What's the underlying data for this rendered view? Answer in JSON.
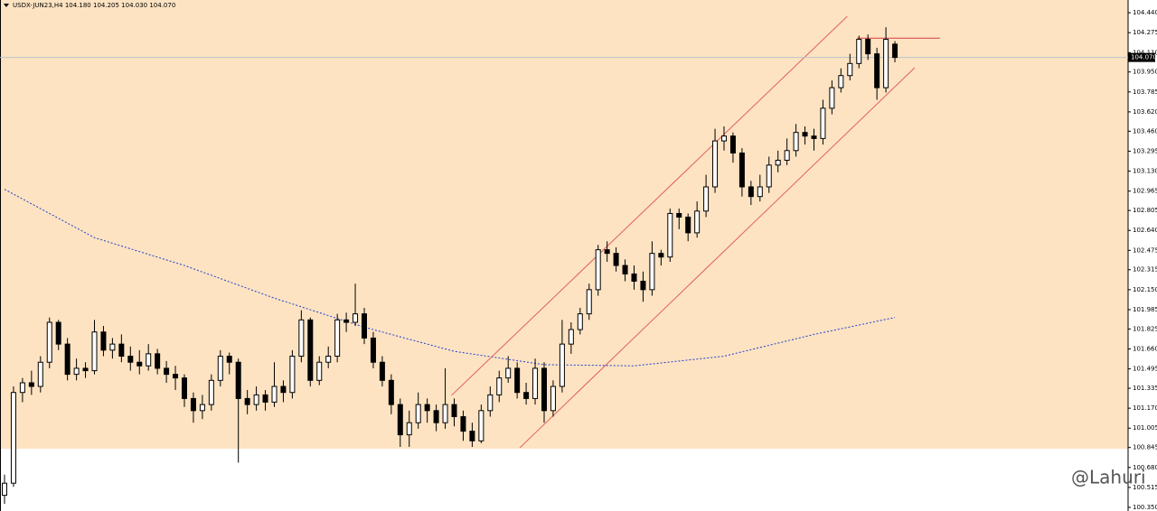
{
  "chart_data": {
    "type": "candlestick",
    "title": "USDX-JUN23,H4  104.180 104.205 104.030 104.070",
    "ylim": [
      100.32,
      104.545
    ],
    "yticks": [
      {
        "value": 104.44,
        "label": "104.440"
      },
      104.275,
      {
        "value": 104.11,
        "label": "104.110"
      },
      {
        "value": 103.95,
        "label": "103.950"
      },
      103.785,
      {
        "value": 103.62,
        "label": "103.620"
      },
      {
        "value": 103.46,
        "label": "103.460"
      },
      103.295,
      {
        "value": 103.13,
        "label": "103.130"
      },
      102.965,
      102.805,
      {
        "value": 102.64,
        "label": "102.640"
      },
      102.475,
      102.315,
      {
        "value": 102.15,
        "label": "102.150"
      },
      101.985,
      101.825,
      {
        "value": 101.66,
        "label": "101.660"
      },
      101.495,
      101.335,
      {
        "value": 101.17,
        "label": "101.170"
      },
      101.005,
      100.845,
      {
        "value": 100.68,
        "label": "100.680"
      },
      100.515,
      {
        "value": 100.35,
        "label": "100.350"
      }
    ],
    "last_price": {
      "value": 104.07,
      "label": "104.070"
    },
    "zone": {
      "color": "#fde3c2",
      "low": 100.835
    },
    "up_color": "#ffffff",
    "down_color": "#000000",
    "ohlc": [
      [
        100.45,
        100.62,
        100.38,
        100.55
      ],
      [
        100.55,
        101.35,
        100.52,
        101.3
      ],
      [
        101.3,
        101.42,
        101.22,
        101.38
      ],
      [
        101.38,
        101.48,
        101.28,
        101.35
      ],
      [
        101.35,
        101.6,
        101.3,
        101.55
      ],
      [
        101.55,
        101.92,
        101.5,
        101.88
      ],
      [
        101.88,
        101.9,
        101.65,
        101.7
      ],
      [
        101.7,
        101.75,
        101.4,
        101.45
      ],
      [
        101.45,
        101.58,
        101.4,
        101.5
      ],
      [
        101.5,
        101.55,
        101.42,
        101.48
      ],
      [
        101.48,
        101.9,
        101.45,
        101.8
      ],
      [
        101.8,
        101.85,
        101.6,
        101.65
      ],
      [
        101.65,
        101.75,
        101.58,
        101.7
      ],
      [
        101.7,
        101.78,
        101.55,
        101.6
      ],
      [
        101.6,
        101.68,
        101.48,
        101.55
      ],
      [
        101.55,
        101.65,
        101.45,
        101.52
      ],
      [
        101.52,
        101.7,
        101.48,
        101.62
      ],
      [
        101.62,
        101.66,
        101.45,
        101.5
      ],
      [
        101.5,
        101.56,
        101.38,
        101.45
      ],
      [
        101.45,
        101.52,
        101.32,
        101.42
      ],
      [
        101.42,
        101.45,
        101.18,
        101.25
      ],
      [
        101.25,
        101.3,
        101.05,
        101.15
      ],
      [
        101.15,
        101.28,
        101.08,
        101.2
      ],
      [
        101.2,
        101.45,
        101.15,
        101.4
      ],
      [
        101.4,
        101.65,
        101.35,
        101.6
      ],
      [
        101.6,
        101.63,
        101.45,
        101.55
      ],
      [
        101.55,
        101.58,
        100.72,
        101.25
      ],
      [
        101.25,
        101.32,
        101.12,
        101.2
      ],
      [
        101.2,
        101.35,
        101.15,
        101.28
      ],
      [
        101.28,
        101.32,
        101.15,
        101.22
      ],
      [
        101.22,
        101.55,
        101.18,
        101.35
      ],
      [
        101.35,
        101.4,
        101.22,
        101.3
      ],
      [
        101.3,
        101.65,
        101.25,
        101.6
      ],
      [
        101.6,
        101.98,
        101.55,
        101.9
      ],
      [
        101.9,
        101.92,
        101.35,
        101.4
      ],
      [
        101.4,
        101.6,
        101.36,
        101.55
      ],
      [
        101.55,
        101.68,
        101.5,
        101.6
      ],
      [
        101.6,
        101.95,
        101.55,
        101.9
      ],
      [
        101.9,
        101.96,
        101.8,
        101.88
      ],
      [
        101.88,
        102.2,
        101.85,
        101.95
      ],
      [
        101.95,
        102.0,
        101.7,
        101.75
      ],
      [
        101.75,
        101.8,
        101.5,
        101.55
      ],
      [
        101.55,
        101.6,
        101.35,
        101.4
      ],
      [
        101.4,
        101.45,
        101.12,
        101.2
      ],
      [
        101.2,
        101.25,
        100.85,
        100.95
      ],
      [
        100.95,
        101.15,
        100.85,
        101.05
      ],
      [
        101.05,
        101.3,
        101.0,
        101.2
      ],
      [
        101.2,
        101.25,
        101.05,
        101.15
      ],
      [
        101.15,
        101.2,
        100.98,
        101.05
      ],
      [
        101.05,
        101.5,
        101.0,
        101.2
      ],
      [
        101.2,
        101.25,
        101.02,
        101.1
      ],
      [
        101.1,
        101.15,
        100.9,
        100.98
      ],
      [
        100.98,
        101.05,
        100.85,
        100.9
      ],
      [
        100.9,
        101.2,
        100.88,
        101.15
      ],
      [
        101.15,
        101.35,
        101.1,
        101.28
      ],
      [
        101.28,
        101.48,
        101.22,
        101.42
      ],
      [
        101.42,
        101.6,
        101.38,
        101.5
      ],
      [
        101.5,
        101.55,
        101.25,
        101.3
      ],
      [
        101.3,
        101.38,
        101.2,
        101.25
      ],
      [
        101.25,
        101.58,
        101.2,
        101.5
      ],
      [
        101.5,
        101.55,
        101.05,
        101.15
      ],
      [
        101.15,
        101.4,
        101.1,
        101.35
      ],
      [
        101.35,
        101.9,
        101.3,
        101.7
      ],
      [
        101.7,
        101.88,
        101.62,
        101.82
      ],
      [
        101.82,
        102.0,
        101.78,
        101.95
      ],
      [
        101.95,
        102.2,
        101.9,
        102.15
      ],
      [
        102.15,
        102.52,
        102.1,
        102.48
      ],
      [
        102.48,
        102.55,
        102.38,
        102.45
      ],
      [
        102.45,
        102.5,
        102.3,
        102.35
      ],
      [
        102.35,
        102.4,
        102.22,
        102.28
      ],
      [
        102.28,
        102.35,
        102.15,
        102.22
      ],
      [
        102.22,
        102.3,
        102.05,
        102.15
      ],
      [
        102.15,
        102.55,
        102.1,
        102.45
      ],
      [
        102.45,
        102.48,
        102.35,
        102.42
      ],
      [
        102.42,
        102.82,
        102.38,
        102.78
      ],
      [
        102.78,
        102.82,
        102.65,
        102.75
      ],
      [
        102.75,
        102.78,
        102.55,
        102.62
      ],
      [
        102.62,
        102.88,
        102.58,
        102.8
      ],
      [
        102.8,
        103.1,
        102.75,
        103.0
      ],
      [
        103.0,
        103.48,
        102.95,
        103.38
      ],
      [
        103.38,
        103.5,
        103.3,
        103.42
      ],
      [
        103.42,
        103.45,
        103.2,
        103.28
      ],
      [
        103.28,
        103.32,
        102.92,
        103.0
      ],
      [
        103.0,
        103.05,
        102.85,
        102.92
      ],
      [
        102.92,
        103.1,
        102.88,
        103.0
      ],
      [
        103.0,
        103.25,
        102.95,
        103.18
      ],
      [
        103.18,
        103.3,
        103.12,
        103.22
      ],
      [
        103.22,
        103.4,
        103.18,
        103.3
      ],
      [
        103.3,
        103.52,
        103.25,
        103.45
      ],
      [
        103.45,
        103.5,
        103.35,
        103.42
      ],
      [
        103.42,
        103.48,
        103.3,
        103.4
      ],
      [
        103.4,
        103.72,
        103.35,
        103.65
      ],
      [
        103.65,
        103.88,
        103.6,
        103.82
      ],
      [
        103.82,
        103.98,
        103.78,
        103.92
      ],
      [
        103.92,
        104.1,
        103.88,
        104.02
      ],
      [
        104.02,
        104.25,
        103.98,
        104.22
      ],
      [
        104.22,
        104.26,
        104.05,
        104.1
      ],
      [
        104.1,
        104.15,
        103.72,
        103.82
      ],
      [
        103.82,
        104.32,
        103.78,
        104.22
      ],
      [
        104.18,
        104.205,
        104.03,
        104.07
      ]
    ],
    "ma": {
      "color": "#1f3fcf",
      "x": [
        0,
        10,
        20,
        30,
        40,
        50,
        60,
        70,
        80,
        90,
        99
      ],
      "values": [
        102.98,
        102.58,
        102.35,
        102.08,
        101.84,
        101.64,
        101.53,
        101.52,
        101.6,
        101.78,
        101.92
      ]
    },
    "trendlines": [
      {
        "color": "#e06060",
        "x": [
          49.7,
          93.7
        ],
        "values": [
          101.276,
          104.41
        ]
      },
      {
        "color": "#e06060",
        "x": [
          57.3,
          101.2
        ],
        "values": [
          100.843,
          103.985
        ]
      },
      {
        "color": "#d04040",
        "x": [
          94.8,
          104
        ],
        "values": [
          104.23,
          104.23
        ]
      }
    ],
    "watermark": "@Lahuri"
  }
}
